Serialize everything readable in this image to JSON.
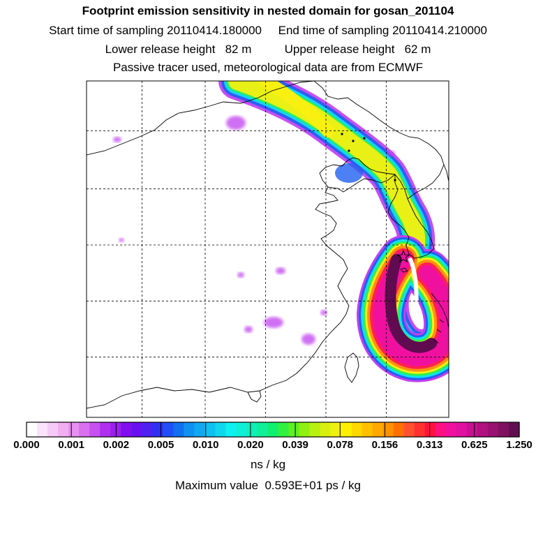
{
  "header": {
    "title": "Footprint emission sensitivity in nested domain for gosan_201104",
    "line2": "Start time of sampling 20110414.180000     End time of sampling 20110414.210000",
    "line3": "Lower release height   82 m          Upper release height   62 m",
    "line4": "Passive tracer used, meteorological data are from ECMWF"
  },
  "colorbar": {
    "tick_labels": [
      "0.000",
      "0.001",
      "0.002",
      "0.005",
      "0.010",
      "0.020",
      "0.039",
      "0.078",
      "0.156",
      "0.313",
      "0.625",
      "1.250"
    ],
    "colors": [
      "#ffffff",
      "#fbe3fb",
      "#f6c9f6",
      "#f0aff0",
      "#e890f0",
      "#d870f0",
      "#c850f0",
      "#b030f0",
      "#9a20ee",
      "#8010f0",
      "#6a10f0",
      "#5020f0",
      "#3030f5",
      "#2050f5",
      "#1070f0",
      "#1090f0",
      "#10a8f0",
      "#10c0f0",
      "#10d8ec",
      "#10f0f0",
      "#10f0d8",
      "#10f0b8",
      "#10f098",
      "#10f070",
      "#30f040",
      "#60f020",
      "#90f010",
      "#b8f010",
      "#d8f010",
      "#f0f010",
      "#fff000",
      "#ffd800",
      "#ffc000",
      "#ffa800",
      "#ff9000",
      "#ff7000",
      "#ff5030",
      "#ff3030",
      "#ff1040",
      "#ff1080",
      "#f010a0",
      "#e010a0",
      "#c81090",
      "#b01080",
      "#981070",
      "#801060",
      "#601050"
    ],
    "units": "ns / kg"
  },
  "maximum": "Maximum value  0.593E+01 ps / kg",
  "map": {
    "lon_gridlines": 5,
    "lat_gridlines": 5,
    "plume_colors": {
      "outer": "#c040f0",
      "blue": "#2060f0",
      "cyan": "#10e0f0",
      "green": "#30f050",
      "yellow": "#f8f010",
      "orange": "#ff9010",
      "red": "#ff2050",
      "magenta": "#f010a0",
      "core": "#600a50"
    },
    "receptor_symbol": "star"
  }
}
